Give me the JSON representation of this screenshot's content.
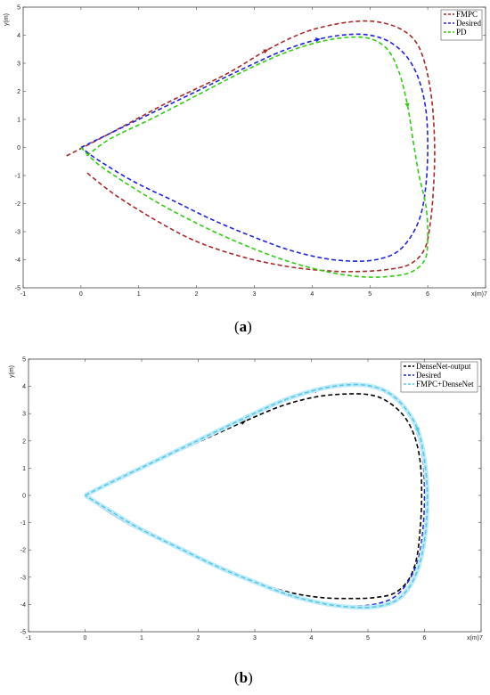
{
  "chart_data": [
    {
      "type": "line",
      "caption": {
        "open": "(",
        "letter": "a",
        "close": ")"
      },
      "xlabel": "x(m)",
      "ylabel": "y(m)",
      "xlim": [
        -1,
        7
      ],
      "ylim": [
        -5,
        5
      ],
      "xticks": [
        "-1",
        "0",
        "1",
        "2",
        "3",
        "4",
        "5",
        "6",
        "7"
      ],
      "yticks": [
        "-5",
        "-4",
        "-3",
        "-2",
        "-1",
        "0",
        "1",
        "2",
        "3",
        "4",
        "5"
      ],
      "legend_position": "top-right",
      "series": [
        {
          "name": "FMPC",
          "color": "#a52a2a",
          "x": [
            -0.25,
            0.5,
            1.5,
            2.5,
            3.2,
            3.8,
            4.3,
            4.8,
            5.2,
            5.55,
            5.8,
            5.95,
            6.05,
            6.1,
            6.12,
            6.1,
            6.05,
            5.95,
            5.7,
            5.3,
            4.8,
            4.3,
            3.6,
            2.8,
            2.0,
            1.3,
            0.6,
            0.1
          ],
          "y": [
            -0.3,
            0.5,
            1.6,
            2.6,
            3.45,
            4.05,
            4.35,
            4.5,
            4.45,
            4.2,
            3.75,
            3.0,
            2.0,
            1.0,
            -0.2,
            -1.4,
            -2.6,
            -3.6,
            -4.15,
            -4.35,
            -4.42,
            -4.4,
            -4.25,
            -3.9,
            -3.35,
            -2.6,
            -1.7,
            -0.9
          ]
        },
        {
          "name": "Desired",
          "color": "#1f24d9",
          "x": [
            0.0,
            0.5,
            1.2,
            2.0,
            2.8,
            3.5,
            4.1,
            4.6,
            5.0,
            5.35,
            5.65,
            5.85,
            5.97,
            6.0,
            5.97,
            5.88,
            5.7,
            5.45,
            5.1,
            4.7,
            4.2,
            3.6,
            3.0,
            2.3,
            1.6,
            0.9,
            0.3,
            0.0
          ],
          "y": [
            0.0,
            0.5,
            1.2,
            2.0,
            2.8,
            3.45,
            3.85,
            4.02,
            4.0,
            3.75,
            3.2,
            2.4,
            1.3,
            0.0,
            -1.3,
            -2.4,
            -3.2,
            -3.75,
            -4.0,
            -4.05,
            -3.95,
            -3.65,
            -3.2,
            -2.6,
            -1.9,
            -1.2,
            -0.45,
            0.0
          ]
        },
        {
          "name": "PD",
          "color": "#33cc11",
          "x": [
            0.1,
            0.5,
            1.2,
            2.0,
            2.8,
            3.5,
            4.1,
            4.6,
            5.0,
            5.3,
            5.5,
            5.65,
            5.75,
            5.85,
            5.97,
            6.0,
            5.95,
            5.7,
            5.3,
            4.8,
            4.2,
            3.5,
            2.8,
            2.1,
            1.4,
            0.8,
            0.3,
            0.0
          ],
          "y": [
            -0.3,
            0.3,
            1.0,
            1.85,
            2.7,
            3.35,
            3.75,
            3.92,
            3.88,
            3.5,
            2.7,
            1.5,
            0.2,
            -1.0,
            -2.1,
            -3.2,
            -4.0,
            -4.45,
            -4.6,
            -4.6,
            -4.4,
            -4.0,
            -3.45,
            -2.8,
            -2.05,
            -1.3,
            -0.6,
            0.0
          ]
        }
      ]
    },
    {
      "type": "line",
      "caption": {
        "open": "(",
        "letter": "b",
        "close": ")"
      },
      "xlabel": "x(m)",
      "ylabel": "y(m)",
      "xlim": [
        -1,
        7
      ],
      "ylim": [
        -5,
        5
      ],
      "xticks": [
        "-1",
        "0",
        "1",
        "2",
        "3",
        "4",
        "5",
        "6",
        "7"
      ],
      "yticks": [
        "-5",
        "-4",
        "-3",
        "-2",
        "-1",
        "0",
        "1",
        "2",
        "3",
        "4",
        "5"
      ],
      "legend_position": "top-right",
      "series": [
        {
          "name": "DenseNet-output",
          "color": "#000000",
          "x": [
            0.0,
            0.5,
            1.2,
            2.0,
            2.8,
            3.5,
            4.1,
            4.6,
            5.0,
            5.3,
            5.6,
            5.8,
            5.92,
            5.95,
            5.92,
            5.85,
            5.7,
            5.45,
            5.1,
            4.7,
            4.2,
            3.6,
            3.0,
            2.3,
            1.6,
            0.9,
            0.3,
            0.0
          ],
          "y": [
            0.0,
            0.5,
            1.2,
            1.95,
            2.7,
            3.3,
            3.62,
            3.72,
            3.7,
            3.5,
            3.0,
            2.3,
            1.3,
            0.0,
            -1.3,
            -2.4,
            -3.15,
            -3.6,
            -3.75,
            -3.78,
            -3.75,
            -3.55,
            -3.15,
            -2.6,
            -1.9,
            -1.2,
            -0.45,
            0.0
          ]
        },
        {
          "name": "Desired",
          "color": "#1f24d9",
          "x": [
            0.0,
            0.5,
            1.2,
            2.0,
            2.8,
            3.5,
            4.1,
            4.6,
            5.0,
            5.35,
            5.65,
            5.85,
            5.97,
            6.0,
            5.97,
            5.88,
            5.7,
            5.45,
            5.1,
            4.7,
            4.2,
            3.6,
            3.0,
            2.3,
            1.6,
            0.9,
            0.3,
            0.0
          ],
          "y": [
            0.0,
            0.5,
            1.2,
            2.0,
            2.8,
            3.45,
            3.85,
            4.02,
            4.0,
            3.75,
            3.2,
            2.4,
            1.3,
            0.0,
            -1.3,
            -2.4,
            -3.2,
            -3.75,
            -4.0,
            -4.05,
            -3.95,
            -3.65,
            -3.2,
            -2.6,
            -1.9,
            -1.2,
            -0.45,
            0.0
          ]
        },
        {
          "name": "FMPC+DenseNet",
          "color": "#55c8e8",
          "x": [
            0.0,
            0.5,
            1.2,
            2.0,
            2.8,
            3.5,
            4.1,
            4.6,
            5.0,
            5.35,
            5.65,
            5.88,
            6.0,
            6.05,
            6.02,
            5.92,
            5.75,
            5.5,
            5.15,
            4.75,
            4.25,
            3.65,
            3.05,
            2.35,
            1.65,
            0.95,
            0.35,
            0.0
          ],
          "y": [
            0.0,
            0.52,
            1.22,
            2.02,
            2.82,
            3.48,
            3.88,
            4.05,
            4.03,
            3.78,
            3.22,
            2.4,
            1.3,
            0.0,
            -1.3,
            -2.45,
            -3.3,
            -3.85,
            -4.08,
            -4.1,
            -3.98,
            -3.68,
            -3.22,
            -2.62,
            -1.92,
            -1.2,
            -0.45,
            0.0
          ]
        }
      ]
    }
  ]
}
